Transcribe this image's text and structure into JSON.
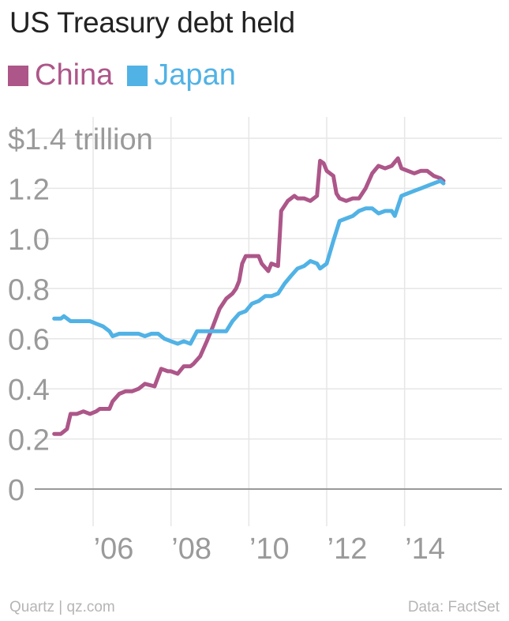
{
  "title": "US Treasury debt held",
  "footer": {
    "source_left": "Quartz | qz.com",
    "source_right": "Data: FactSet"
  },
  "colors": {
    "china": "#ad5689",
    "japan": "#51b2e5",
    "grid": "#e6e6e6",
    "axis": "#999999",
    "tick": "#9a9a9a"
  },
  "chart_data": {
    "type": "line",
    "title": "US Treasury debt held",
    "ylabel": "",
    "y_unit_label": "$1.4 trillion",
    "ylim": [
      0,
      1.4
    ],
    "xlim": [
      2004.5,
      2016.5
    ],
    "yticks": [
      0,
      0.2,
      0.4,
      0.6,
      0.8,
      1.0,
      1.2,
      1.4
    ],
    "ytick_labels": [
      "0",
      "0.2",
      "0.4",
      "0.6",
      "0.8",
      "1.0",
      "1.2",
      "$1.4 trillion"
    ],
    "xticks": [
      2006,
      2008,
      2010,
      2012,
      2014
    ],
    "xtick_labels": [
      "’06",
      "’08",
      "’10",
      "’12",
      "’14"
    ],
    "legend_position": "top-left",
    "series": [
      {
        "name": "China",
        "color": "#ad5689",
        "points": [
          [
            2005.0,
            0.22
          ],
          [
            2005.17,
            0.22
          ],
          [
            2005.33,
            0.24
          ],
          [
            2005.42,
            0.3
          ],
          [
            2005.58,
            0.3
          ],
          [
            2005.75,
            0.31
          ],
          [
            2005.92,
            0.3
          ],
          [
            2006.08,
            0.31
          ],
          [
            2006.17,
            0.32
          ],
          [
            2006.42,
            0.32
          ],
          [
            2006.5,
            0.35
          ],
          [
            2006.67,
            0.38
          ],
          [
            2006.83,
            0.39
          ],
          [
            2007.0,
            0.39
          ],
          [
            2007.17,
            0.4
          ],
          [
            2007.33,
            0.42
          ],
          [
            2007.58,
            0.41
          ],
          [
            2007.75,
            0.48
          ],
          [
            2007.92,
            0.47
          ],
          [
            2008.0,
            0.47
          ],
          [
            2008.17,
            0.46
          ],
          [
            2008.33,
            0.49
          ],
          [
            2008.5,
            0.49
          ],
          [
            2008.58,
            0.5
          ],
          [
            2008.75,
            0.53
          ],
          [
            2008.92,
            0.59
          ],
          [
            2009.08,
            0.65
          ],
          [
            2009.25,
            0.72
          ],
          [
            2009.42,
            0.76
          ],
          [
            2009.58,
            0.78
          ],
          [
            2009.67,
            0.8
          ],
          [
            2009.75,
            0.83
          ],
          [
            2009.83,
            0.9
          ],
          [
            2009.92,
            0.93
          ],
          [
            2010.08,
            0.93
          ],
          [
            2010.25,
            0.93
          ],
          [
            2010.33,
            0.9
          ],
          [
            2010.5,
            0.87
          ],
          [
            2010.58,
            0.9
          ],
          [
            2010.75,
            0.89
          ],
          [
            2010.83,
            1.11
          ],
          [
            2011.0,
            1.15
          ],
          [
            2011.17,
            1.17
          ],
          [
            2011.25,
            1.16
          ],
          [
            2011.42,
            1.16
          ],
          [
            2011.58,
            1.15
          ],
          [
            2011.75,
            1.17
          ],
          [
            2011.83,
            1.31
          ],
          [
            2011.92,
            1.3
          ],
          [
            2012.0,
            1.27
          ],
          [
            2012.17,
            1.25
          ],
          [
            2012.25,
            1.18
          ],
          [
            2012.33,
            1.16
          ],
          [
            2012.5,
            1.15
          ],
          [
            2012.67,
            1.16
          ],
          [
            2012.83,
            1.16
          ],
          [
            2013.0,
            1.2
          ],
          [
            2013.17,
            1.26
          ],
          [
            2013.33,
            1.29
          ],
          [
            2013.5,
            1.28
          ],
          [
            2013.67,
            1.29
          ],
          [
            2013.83,
            1.32
          ],
          [
            2013.92,
            1.28
          ],
          [
            2014.08,
            1.27
          ],
          [
            2014.25,
            1.26
          ],
          [
            2014.42,
            1.27
          ],
          [
            2014.58,
            1.27
          ],
          [
            2014.75,
            1.25
          ],
          [
            2014.92,
            1.24
          ],
          [
            2015.0,
            1.23
          ]
        ]
      },
      {
        "name": "Japan",
        "color": "#51b2e5",
        "points": [
          [
            2005.0,
            0.68
          ],
          [
            2005.17,
            0.68
          ],
          [
            2005.25,
            0.69
          ],
          [
            2005.42,
            0.67
          ],
          [
            2005.58,
            0.67
          ],
          [
            2005.75,
            0.67
          ],
          [
            2005.92,
            0.67
          ],
          [
            2006.08,
            0.66
          ],
          [
            2006.25,
            0.65
          ],
          [
            2006.42,
            0.63
          ],
          [
            2006.5,
            0.61
          ],
          [
            2006.67,
            0.62
          ],
          [
            2006.83,
            0.62
          ],
          [
            2007.0,
            0.62
          ],
          [
            2007.17,
            0.62
          ],
          [
            2007.33,
            0.61
          ],
          [
            2007.5,
            0.62
          ],
          [
            2007.67,
            0.62
          ],
          [
            2007.83,
            0.6
          ],
          [
            2008.0,
            0.59
          ],
          [
            2008.17,
            0.58
          ],
          [
            2008.33,
            0.59
          ],
          [
            2008.5,
            0.58
          ],
          [
            2008.67,
            0.63
          ],
          [
            2008.83,
            0.63
          ],
          [
            2009.0,
            0.63
          ],
          [
            2009.25,
            0.63
          ],
          [
            2009.42,
            0.63
          ],
          [
            2009.58,
            0.67
          ],
          [
            2009.75,
            0.7
          ],
          [
            2009.92,
            0.71
          ],
          [
            2010.08,
            0.74
          ],
          [
            2010.25,
            0.75
          ],
          [
            2010.42,
            0.77
          ],
          [
            2010.58,
            0.77
          ],
          [
            2010.75,
            0.78
          ],
          [
            2010.92,
            0.82
          ],
          [
            2011.08,
            0.85
          ],
          [
            2011.25,
            0.88
          ],
          [
            2011.42,
            0.89
          ],
          [
            2011.58,
            0.91
          ],
          [
            2011.75,
            0.9
          ],
          [
            2011.83,
            0.88
          ],
          [
            2012.0,
            0.9
          ],
          [
            2012.17,
            0.99
          ],
          [
            2012.33,
            1.07
          ],
          [
            2012.5,
            1.08
          ],
          [
            2012.67,
            1.09
          ],
          [
            2012.83,
            1.11
          ],
          [
            2013.0,
            1.12
          ],
          [
            2013.17,
            1.12
          ],
          [
            2013.33,
            1.1
          ],
          [
            2013.5,
            1.11
          ],
          [
            2013.67,
            1.11
          ],
          [
            2013.75,
            1.09
          ],
          [
            2013.92,
            1.17
          ],
          [
            2014.08,
            1.18
          ],
          [
            2014.25,
            1.19
          ],
          [
            2014.42,
            1.2
          ],
          [
            2014.58,
            1.21
          ],
          [
            2014.75,
            1.22
          ],
          [
            2014.92,
            1.23
          ],
          [
            2015.0,
            1.22
          ]
        ]
      }
    ]
  }
}
